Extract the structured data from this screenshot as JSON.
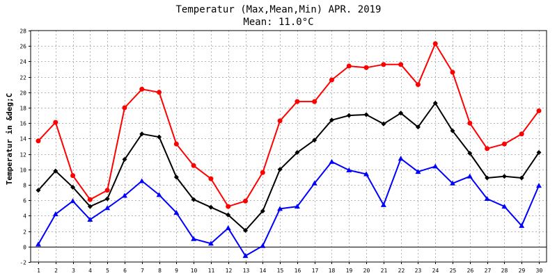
{
  "chart_data": {
    "type": "line",
    "title": "Temperatur (Max,Mean,Min) APR. 2019",
    "subtitle": "Mean: 11.0°C",
    "ylabel": "Temperatur in &deg;C",
    "xlabel": "",
    "x": [
      1,
      2,
      3,
      4,
      5,
      6,
      7,
      8,
      9,
      10,
      11,
      12,
      13,
      14,
      15,
      16,
      17,
      18,
      19,
      20,
      21,
      22,
      23,
      24,
      25,
      26,
      27,
      28,
      29,
      30
    ],
    "ylim": [
      -2,
      28
    ],
    "yticks": [
      -2,
      0,
      2,
      4,
      6,
      8,
      10,
      12,
      14,
      16,
      18,
      20,
      22,
      24,
      26,
      28
    ],
    "grid": true,
    "series": [
      {
        "key": "max",
        "color": "#ff0000",
        "marker": "circle",
        "values": [
          13.7,
          16.1,
          9.2,
          6.1,
          7.3,
          18.0,
          20.4,
          20.0,
          13.3,
          10.5,
          8.8,
          5.2,
          5.9,
          9.6,
          16.3,
          18.8,
          18.8,
          21.6,
          23.4,
          23.2,
          23.6,
          23.6,
          21.0,
          26.3,
          22.6,
          16.0,
          12.7,
          13.3,
          14.6,
          17.6
        ]
      },
      {
        "key": "mean",
        "color": "#000000",
        "marker": "diamond",
        "values": [
          7.3,
          9.8,
          7.7,
          5.2,
          6.2,
          11.3,
          14.6,
          14.2,
          9.0,
          6.1,
          5.1,
          4.1,
          2.1,
          4.6,
          10.0,
          12.2,
          13.8,
          16.4,
          17.0,
          17.1,
          15.9,
          17.3,
          15.5,
          18.6,
          15.0,
          12.1,
          8.9,
          9.1,
          8.9,
          12.2
        ]
      },
      {
        "key": "min",
        "color": "#0000ff",
        "marker": "triangle",
        "values": [
          0.3,
          4.2,
          5.9,
          3.5,
          5.0,
          6.6,
          8.5,
          6.7,
          4.4,
          1.0,
          0.4,
          2.4,
          -1.2,
          0.1,
          4.9,
          5.2,
          8.2,
          11.0,
          9.9,
          9.4,
          5.4,
          11.4,
          9.7,
          10.4,
          8.2,
          9.1,
          6.2,
          5.2,
          2.7,
          7.9
        ]
      }
    ]
  }
}
